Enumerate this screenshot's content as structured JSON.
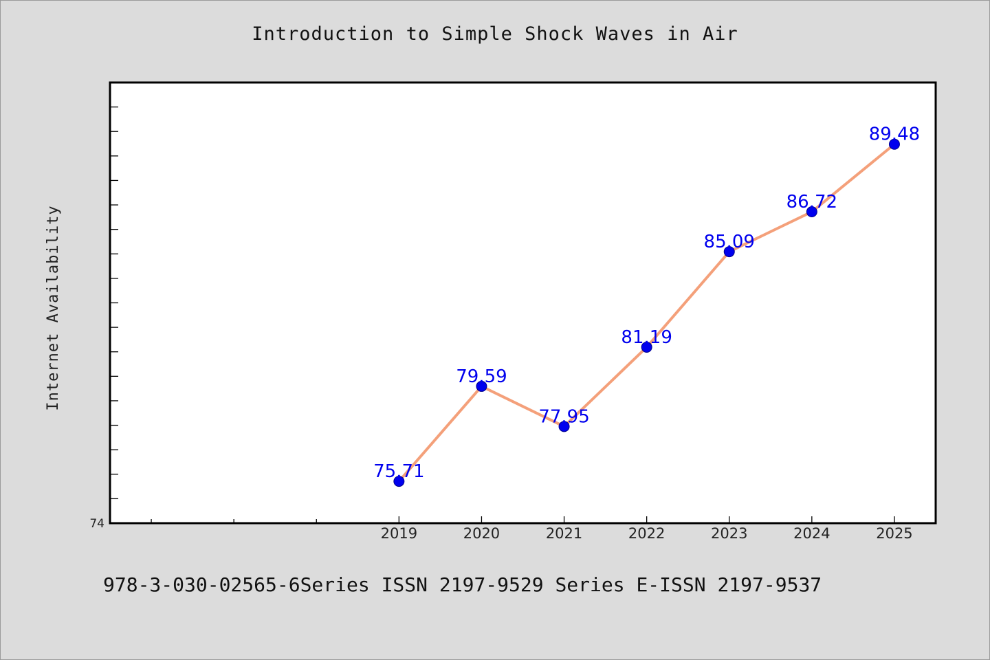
{
  "chart_data": {
    "type": "line",
    "title": "Introduction to Simple Shock Waves in Air",
    "ylabel": "Internet Availability",
    "xlabel": "",
    "x": [
      "2019",
      "2020",
      "2021",
      "2022",
      "2023",
      "2024",
      "2025"
    ],
    "series": [
      {
        "values": [
          75.71,
          79.59,
          77.95,
          81.19,
          85.09,
          86.72,
          89.48
        ]
      }
    ],
    "xlim": [
      2015.5,
      2025.5
    ],
    "ylim": [
      74,
      92
    ],
    "y_tick_labels": [
      "74"
    ],
    "grid": false,
    "data_labels": true,
    "line_color": "#f4a07a",
    "marker_color": "#0000ee",
    "label_color": "#0000ee"
  },
  "footer": "978-3-030-02565-6Series ISSN 2197-9529 Series E-ISSN 2197-9537"
}
